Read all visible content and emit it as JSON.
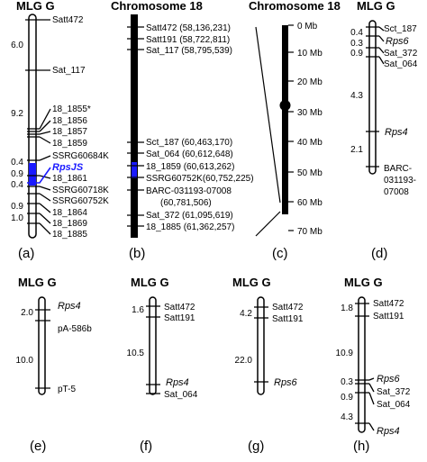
{
  "panels": {
    "a": {
      "label": "(a)",
      "title": "MLG G",
      "markers": [
        "Satt472",
        "Sat_117",
        "18_1855*",
        "18_1856",
        "18_1857",
        "18_1859",
        "SSRG60684K",
        "RpsJS",
        "18_1861",
        "SSRG60718K",
        "SSRG60752K",
        "18_1864",
        "18_1869",
        "18_1885"
      ],
      "distances": [
        "6.0",
        "9.2",
        "0.4",
        "0.9",
        "0.4",
        "0.9",
        "1.0"
      ]
    },
    "b": {
      "label": "(b)",
      "title": "Chromosome 18",
      "markers": [
        "Satt472 (58,136,231)",
        "Satt191 (58,722,811)",
        "Sat_117 (58,795,539)",
        "Sct_187 (60,463,170)",
        "Sat_064 (60,612,648)",
        "18_1859 (60,613,262)",
        "SSRG60752K(60,752,225)",
        "BARC-031193-07008",
        "(60,781,506)",
        "Sat_372 (61,095,619)",
        "18_1885 (61,362,257)"
      ]
    },
    "c": {
      "label": "(c)",
      "title": "Chromosome 18",
      "scale": [
        "0 Mb",
        "10 Mb",
        "20 Mb",
        "30 Mb",
        "40 Mb",
        "50 Mb",
        "60 Mb",
        "70 Mb"
      ]
    },
    "d": {
      "label": "(d)",
      "title": "MLG G",
      "markers": [
        "Sct_187",
        "Rps6",
        "Sat_372",
        "Sat_064",
        "Rps4",
        "BARC-",
        "031193-",
        "07008"
      ],
      "distances": [
        "0.4",
        "0.3",
        "0.9",
        "4.3",
        "2.1"
      ]
    },
    "e": {
      "label": "(e)",
      "title": "MLG G",
      "markers": [
        "Rps4",
        "pA-586b",
        "pT-5"
      ],
      "distances": [
        "2.0",
        "10.0"
      ]
    },
    "f": {
      "label": "(f)",
      "title": "MLG G",
      "markers": [
        "Satt472",
        "Satt191",
        "Rps4",
        "Sat_064"
      ],
      "distances": [
        "1.6",
        "10.5"
      ]
    },
    "g": {
      "label": "(g)",
      "title": "MLG G",
      "markers": [
        "Satt472",
        "Satt191",
        "Rps6"
      ],
      "distances": [
        "4.2",
        "22.0"
      ]
    },
    "h": {
      "label": "(h)",
      "title": "MLG G",
      "markers": [
        "Satt472",
        "Satt191",
        "Rps6",
        "Sat_372",
        "Sat_064",
        "Rps4"
      ],
      "distances": [
        "1.8",
        "10.9",
        "0.3",
        "0.9",
        "4.3"
      ]
    }
  },
  "colors": {
    "highlight": "#1a1aff",
    "line": "#000000"
  }
}
